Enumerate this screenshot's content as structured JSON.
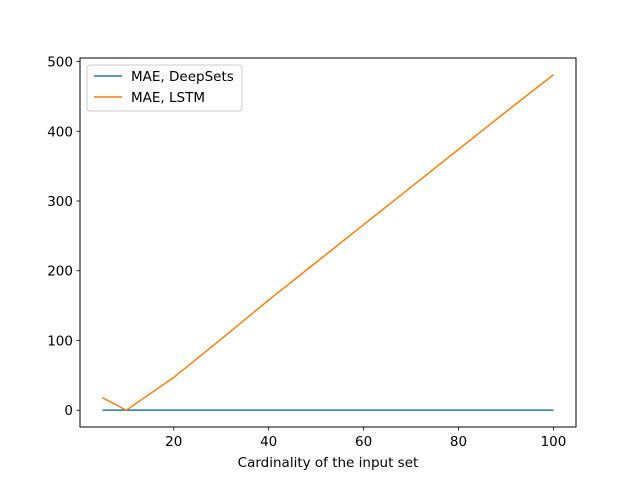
{
  "chart_data": {
    "type": "line",
    "title": "",
    "xlabel": "Cardinality of the input set",
    "ylabel": "",
    "xlim": [
      0.25,
      104.75
    ],
    "ylim": [
      -24.05,
      505.05
    ],
    "xticks": [
      20,
      40,
      60,
      80,
      100
    ],
    "yticks": [
      0,
      100,
      200,
      300,
      400,
      500
    ],
    "grid": false,
    "legend_position": "upper-left",
    "series": [
      {
        "name": "MAE, DeepSets",
        "color": "#1f77b4",
        "x": [
          5,
          10,
          20,
          30,
          40,
          50,
          60,
          70,
          80,
          90,
          100
        ],
        "y": [
          0.2,
          0.2,
          0.2,
          0.2,
          0.2,
          0.2,
          0.2,
          0.2,
          0.2,
          0.2,
          0.2
        ]
      },
      {
        "name": "MAE, LSTM",
        "color": "#ff7f0e",
        "x": [
          5,
          10,
          20,
          30,
          40,
          50,
          60,
          70,
          80,
          90,
          100
        ],
        "y": [
          18,
          0,
          47,
          102,
          158,
          212,
          266,
          320,
          374,
          428,
          481
        ]
      }
    ]
  }
}
